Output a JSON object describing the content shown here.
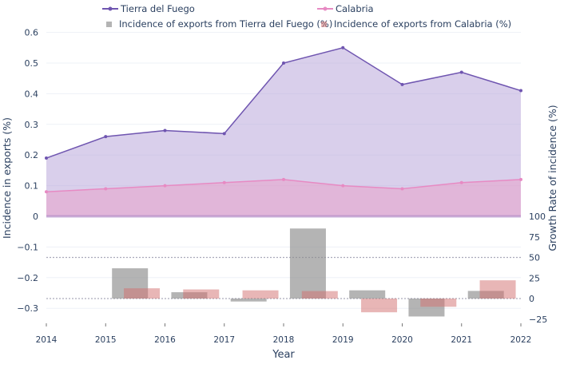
{
  "chart_data": [
    {
      "type": "area",
      "xlabel": "Year",
      "ylabel": "Incidence in exports (%)",
      "x": [
        2014,
        2015,
        2016,
        2017,
        2018,
        2019,
        2020,
        2021,
        2022
      ],
      "x_ticks": [
        "2014",
        "2015",
        "2016",
        "2017",
        "2018",
        "2019",
        "2020",
        "2021",
        "2022"
      ],
      "y_ticks": [
        "0.6",
        "0.5",
        "0.4",
        "0.3",
        "0.2",
        "0.1",
        "0",
        "−0.1",
        "−0.2",
        "−0.3"
      ],
      "ylim": [
        -0.35,
        0.64
      ],
      "series": [
        {
          "name": "Tierra del Fuego",
          "values": [
            0.19,
            0.26,
            0.28,
            0.27,
            0.5,
            0.55,
            0.43,
            0.47,
            0.41
          ],
          "color": "#6f55b0"
        },
        {
          "name": "Calabria",
          "values": [
            0.08,
            0.09,
            0.1,
            0.11,
            0.12,
            0.1,
            0.09,
            0.11,
            0.12
          ],
          "color": "#e78ac3"
        }
      ],
      "grid": true
    },
    {
      "type": "bar",
      "ylabel": "Growth Rate of incidence (%)",
      "x": [
        2015,
        2016,
        2017,
        2018,
        2019,
        2020,
        2021
      ],
      "y_ticks": [
        "100",
        "75",
        "50",
        "25",
        "0",
        "−25"
      ],
      "ylim": [
        -30,
        100
      ],
      "reference_lines": [
        50,
        0
      ],
      "series": [
        {
          "name": "Incidence of exports from Tierra del Fuego (%)",
          "values": [
            36.8,
            7.7,
            -3.6,
            85.2,
            10.0,
            -21.8,
            9.3
          ],
          "color": "#999999"
        },
        {
          "name": "Incidence of exports from Calabria (%)",
          "values": [
            12.5,
            11.1,
            10.0,
            9.1,
            -16.7,
            -10.0,
            22.2
          ],
          "color": "#dc8a8a"
        }
      ]
    }
  ],
  "legend_position": "top"
}
